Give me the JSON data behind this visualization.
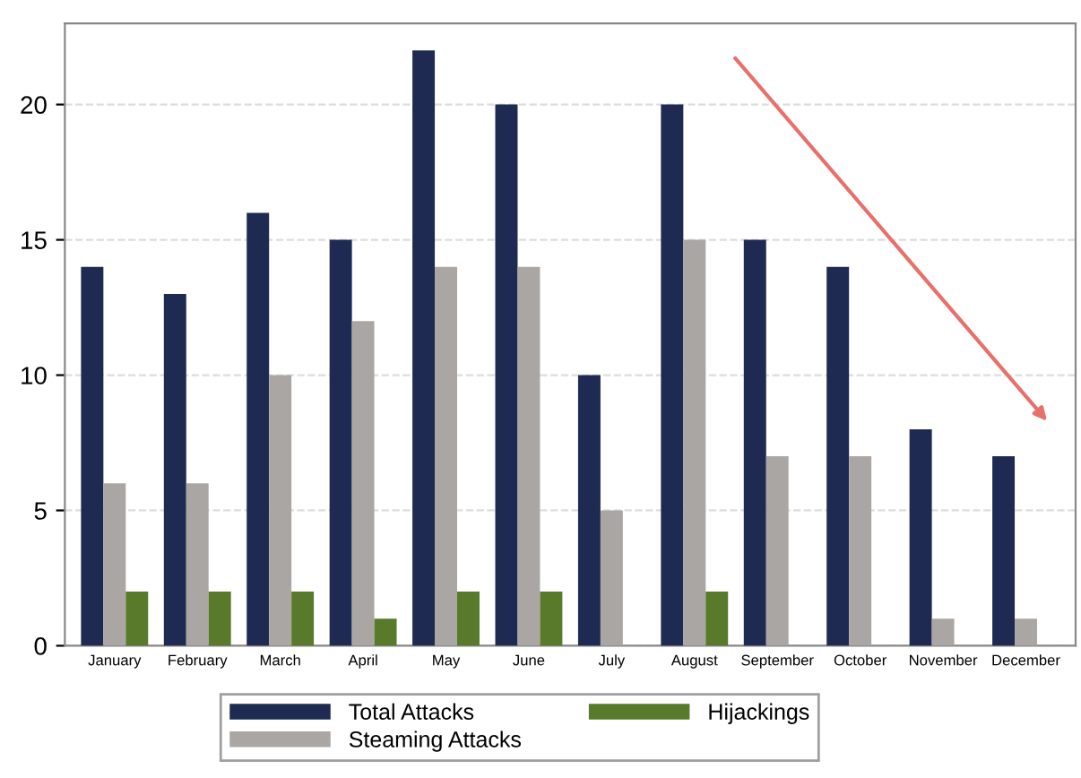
{
  "chart_data": {
    "type": "bar",
    "categories": [
      "January",
      "February",
      "March",
      "April",
      "May",
      "June",
      "July",
      "August",
      "September",
      "October",
      "November",
      "December"
    ],
    "series": [
      {
        "name": "Total Attacks",
        "color": "#1e2a52",
        "values": [
          14,
          13,
          16,
          15,
          22,
          20,
          10,
          20,
          15,
          14,
          8,
          7
        ]
      },
      {
        "name": "Steaming Attacks",
        "color": "#aaa6a3",
        "values": [
          6,
          6,
          10,
          12,
          14,
          14,
          5,
          15,
          7,
          7,
          1,
          1
        ]
      },
      {
        "name": "Hijackings",
        "color": "#587a2a",
        "values": [
          2,
          2,
          2,
          1,
          2,
          2,
          0,
          2,
          0,
          0,
          0,
          0
        ]
      }
    ],
    "ylim": [
      0,
      23
    ],
    "yticks": [
      0,
      5,
      10,
      15,
      20
    ],
    "grid": "y",
    "legend": "bottom"
  }
}
